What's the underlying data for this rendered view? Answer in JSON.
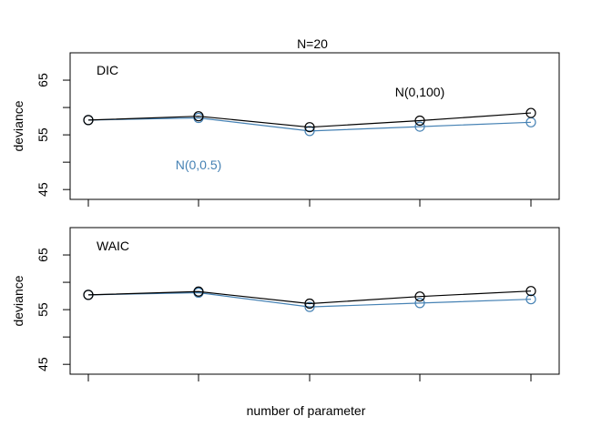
{
  "figure": {
    "title": "N=20",
    "xlabel": "number of parameter"
  },
  "chart_data": [
    {
      "type": "line",
      "panel_label": "DIC",
      "ylabel": "deviance",
      "ylim": [
        43.2,
        70
      ],
      "yticks": [
        45,
        50,
        55,
        60,
        65
      ],
      "ytick_labels": [
        "45",
        "",
        "55",
        "",
        "65"
      ],
      "x": [
        1,
        2,
        3,
        4,
        5
      ],
      "grid": false,
      "series": [
        {
          "name": "N(0,100)",
          "color": "#000000",
          "values": [
            57.7,
            58.4,
            56.4,
            57.6,
            59.0
          ]
        },
        {
          "name": "N(0,0.5)",
          "color": "#4682b4",
          "values": [
            57.7,
            58.1,
            55.7,
            56.5,
            57.3
          ]
        }
      ]
    },
    {
      "type": "line",
      "panel_label": "WAIC",
      "ylabel": "deviance",
      "ylim": [
        43.2,
        70
      ],
      "yticks": [
        45,
        50,
        55,
        60,
        65
      ],
      "ytick_labels": [
        "45",
        "",
        "55",
        "",
        "65"
      ],
      "x": [
        1,
        2,
        3,
        4,
        5
      ],
      "grid": false,
      "series": [
        {
          "name": "",
          "color": "#000000",
          "values": [
            57.7,
            58.3,
            56.1,
            57.4,
            58.4
          ]
        },
        {
          "name": "",
          "color": "#4682b4",
          "values": [
            57.7,
            58.1,
            55.5,
            56.2,
            56.9
          ]
        }
      ]
    }
  ]
}
